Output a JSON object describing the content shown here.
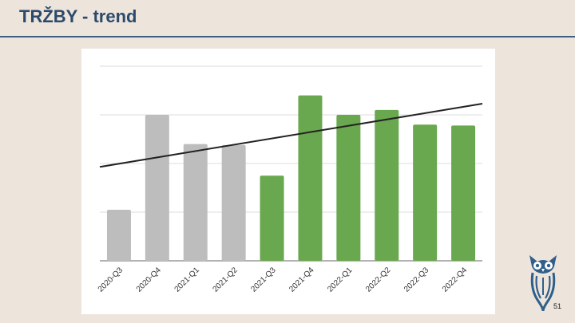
{
  "slide": {
    "title": "TRŽBY - trend",
    "page_number": "51"
  },
  "colors": {
    "background": "#ede4dc",
    "title": "#2b4a6b",
    "rule": "#3f5f80",
    "past_bars": "#bdbdbd",
    "current_bars": "#6aa84f",
    "trend_line": "#222222",
    "gridline": "#dddddd",
    "logo": "#2f5f8a"
  },
  "logo": {
    "icon": "owl-logo-icon"
  },
  "chart_data": {
    "type": "bar",
    "categories": [
      "2020-Q3",
      "2020-Q4",
      "2021-Q1",
      "2021-Q2",
      "2021-Q3",
      "2021-Q4",
      "2022-Q1",
      "2022-Q2",
      "2022-Q3",
      "2022-Q4"
    ],
    "values": [
      1.05,
      3.0,
      2.4,
      2.38,
      1.75,
      3.4,
      3.0,
      3.1,
      2.8,
      2.78
    ],
    "bar_colors": [
      "#bdbdbd",
      "#bdbdbd",
      "#bdbdbd",
      "#bdbdbd",
      "#6aa84f",
      "#6aa84f",
      "#6aa84f",
      "#6aa84f",
      "#6aa84f",
      "#6aa84f"
    ],
    "ylim": [
      0,
      4
    ],
    "y_gridlines": [
      0,
      1,
      2,
      3,
      4
    ],
    "y_tick_labels_shown": false,
    "trendline": {
      "start": 1.93,
      "end": 3.23
    },
    "title": "",
    "xlabel": "",
    "ylabel": "",
    "grid": true,
    "legend": "none"
  }
}
